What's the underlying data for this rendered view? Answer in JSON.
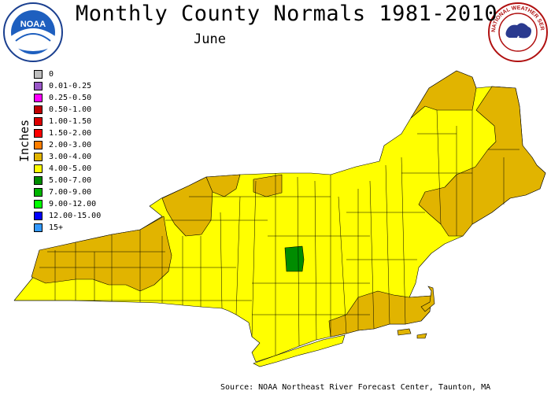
{
  "title": "Monthly County Normals 1981-2010",
  "subtitle": "June",
  "source": "Source: NOAA Northeast River Forecast Center, Taunton, MA",
  "legend_title": "Inches",
  "legend": [
    {
      "label": "0",
      "color": "#bebebe"
    },
    {
      "label": "0.01-0.25",
      "color": "#9a57c8"
    },
    {
      "label": "0.25-0.50",
      "color": "#ff00ff"
    },
    {
      "label": "0.50-1.00",
      "color": "#c00000"
    },
    {
      "label": "1.00-1.50",
      "color": "#dd0000"
    },
    {
      "label": "1.50-2.00",
      "color": "#ff0000"
    },
    {
      "label": "2.00-3.00",
      "color": "#ff7f00"
    },
    {
      "label": "3.00-4.00",
      "color": "#e1b400"
    },
    {
      "label": "4.00-5.00",
      "color": "#ffff00"
    },
    {
      "label": "5.00-7.00",
      "color": "#008c00"
    },
    {
      "label": "7.00-9.00",
      "color": "#00b400"
    },
    {
      "label": "9.00-12.00",
      "color": "#00ff00"
    },
    {
      "label": "12.00-15.00",
      "color": "#0000ff"
    },
    {
      "label": "15+",
      "color": "#3399ff"
    }
  ],
  "logos": {
    "noaa": "NOAA",
    "nws": "NATIONAL WEATHER SERVICE"
  },
  "colors": {
    "fill_3_4": "#e1b400",
    "fill_4_5": "#ffff00",
    "fill_5_7": "#008c00",
    "border": "#000000"
  }
}
